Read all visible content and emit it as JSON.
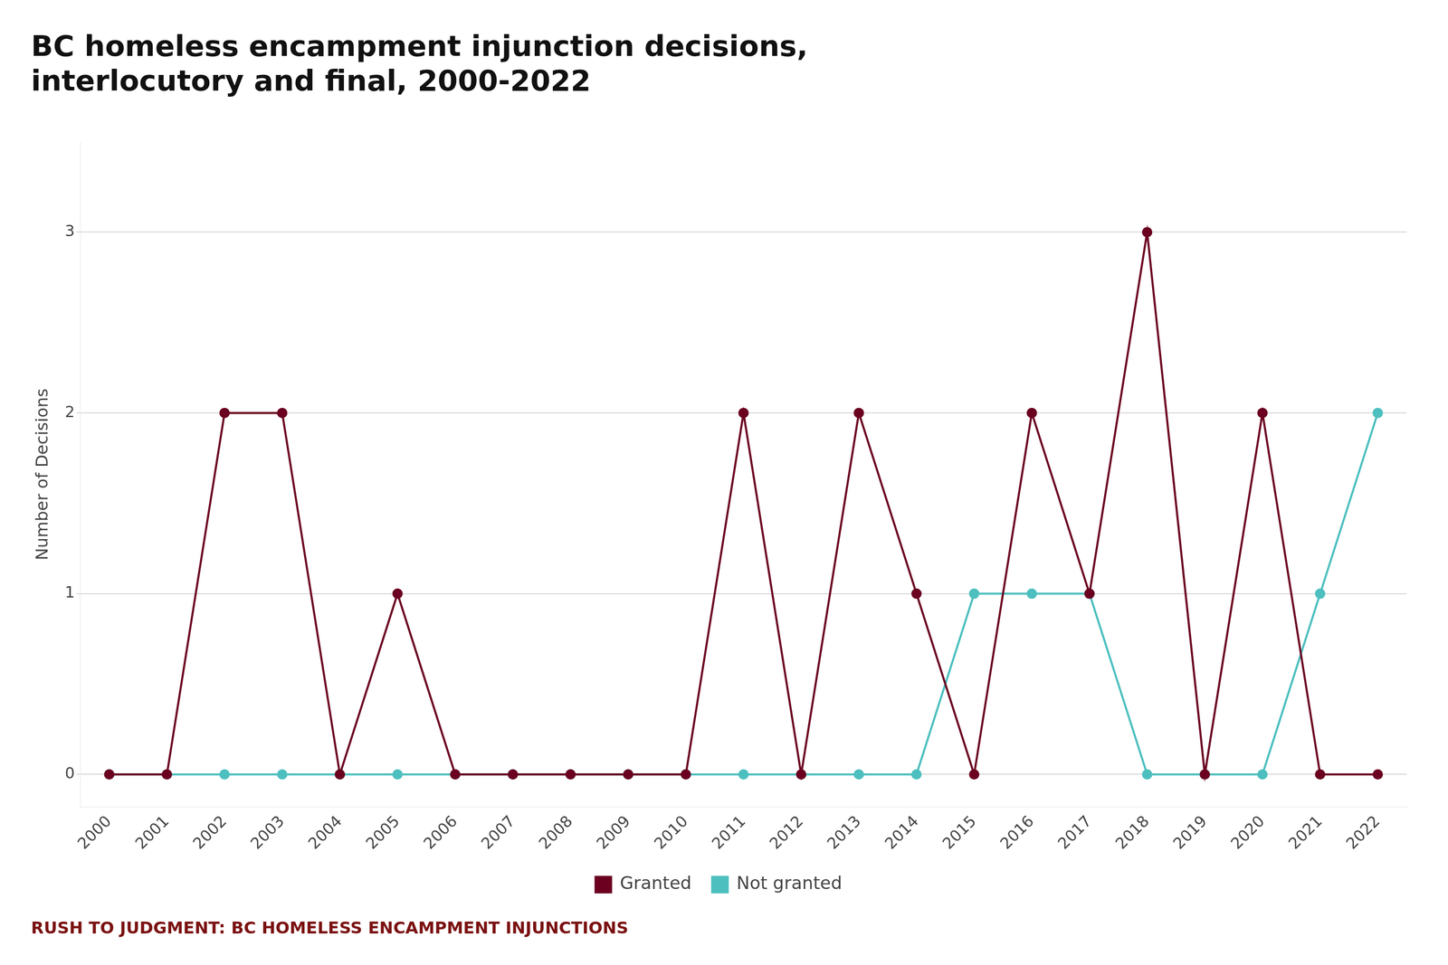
{
  "chart_data": {
    "type": "line",
    "title": "BC homeless encampment injunction decisions,\ninterlocutory and final, 2000-2022",
    "subtitle": "RUSH TO JUDGMENT: BC HOMELESS ENCAMPMENT INJUNCTIONS",
    "ylabel": "Number of Decisions",
    "categories": [
      "2000",
      "2001",
      "2002",
      "2003",
      "2004",
      "2005",
      "2006",
      "2007",
      "2008",
      "2009",
      "2010",
      "2011",
      "2012",
      "2013",
      "2014",
      "2015",
      "2016",
      "2017",
      "2018",
      "2019",
      "2020",
      "2021",
      "2022"
    ],
    "series": [
      {
        "name": "Granted",
        "color": "#6B0020",
        "marker": "circle",
        "values": [
          0,
          0,
          2,
          2,
          0,
          1,
          0,
          0,
          0,
          0,
          0,
          2,
          0,
          2,
          1,
          0,
          2,
          1,
          3,
          0,
          2,
          0,
          0
        ]
      },
      {
        "name": "Not granted",
        "color": "#4DBFBF",
        "marker": "circle",
        "values": [
          0,
          0,
          0,
          0,
          0,
          0,
          0,
          0,
          0,
          0,
          0,
          0,
          0,
          0,
          0,
          1,
          1,
          1,
          0,
          0,
          0,
          1,
          2
        ]
      }
    ],
    "ylim": [
      -0.18,
      3.5
    ],
    "yticks": [
      0,
      1,
      2,
      3
    ],
    "grid": true,
    "legend": "bottom"
  }
}
